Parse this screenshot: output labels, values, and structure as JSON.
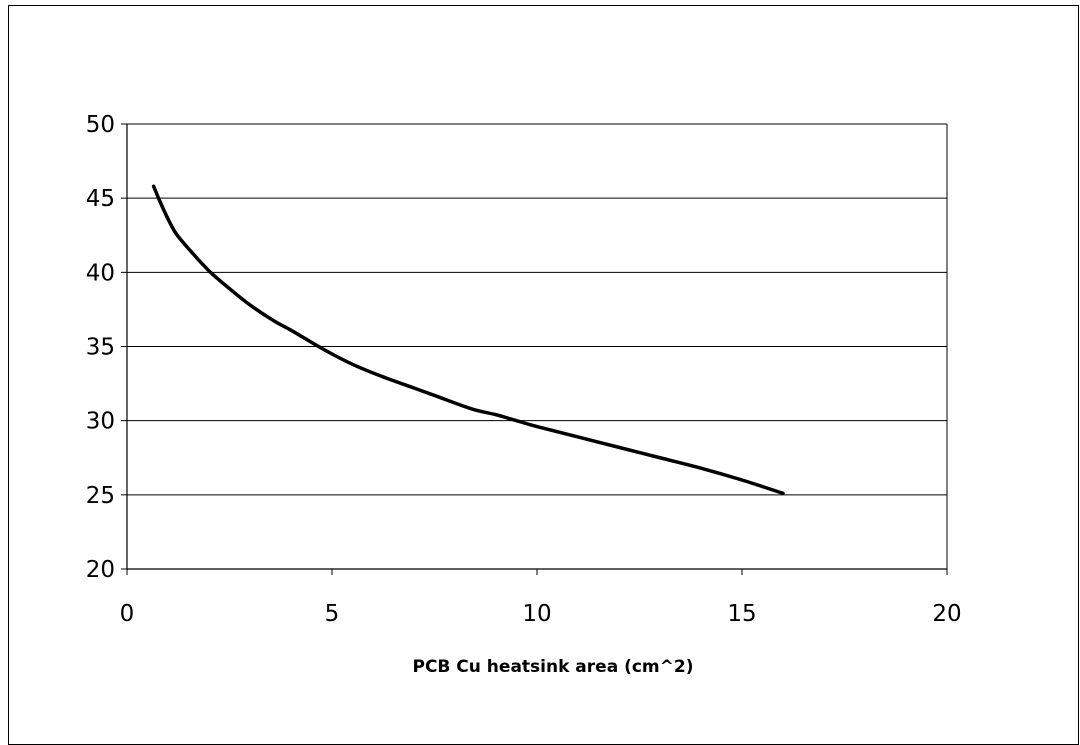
{
  "chart_data": {
    "type": "line",
    "title": "",
    "xlabel": "PCB Cu heatsink area (cm^2)",
    "ylabel": "",
    "xlim": [
      0,
      20
    ],
    "ylim": [
      20,
      50
    ],
    "x_ticks": [
      0,
      5,
      10,
      15,
      20
    ],
    "y_ticks": [
      20,
      25,
      30,
      35,
      40,
      45,
      50
    ],
    "grid": "horizontal",
    "legend": "none",
    "series": [
      {
        "color": "#000000",
        "x": [
          0.65,
          0.8,
          1.0,
          1.2,
          1.5,
          2.0,
          2.5,
          3.0,
          3.6,
          4.0,
          4.8,
          5.5,
          6.2,
          7.0,
          7.5,
          8.4,
          9.0,
          9.5,
          10.0,
          11.0,
          12.0,
          13.0,
          14.0,
          15.0,
          16.0
        ],
        "y": [
          45.8,
          44.8,
          43.6,
          42.6,
          41.6,
          40.1,
          38.9,
          37.8,
          36.7,
          36.1,
          34.8,
          33.8,
          33.0,
          32.2,
          31.7,
          30.8,
          30.4,
          30.0,
          29.6,
          28.9,
          28.2,
          27.5,
          26.8,
          26.0,
          25.1
        ]
      }
    ]
  }
}
